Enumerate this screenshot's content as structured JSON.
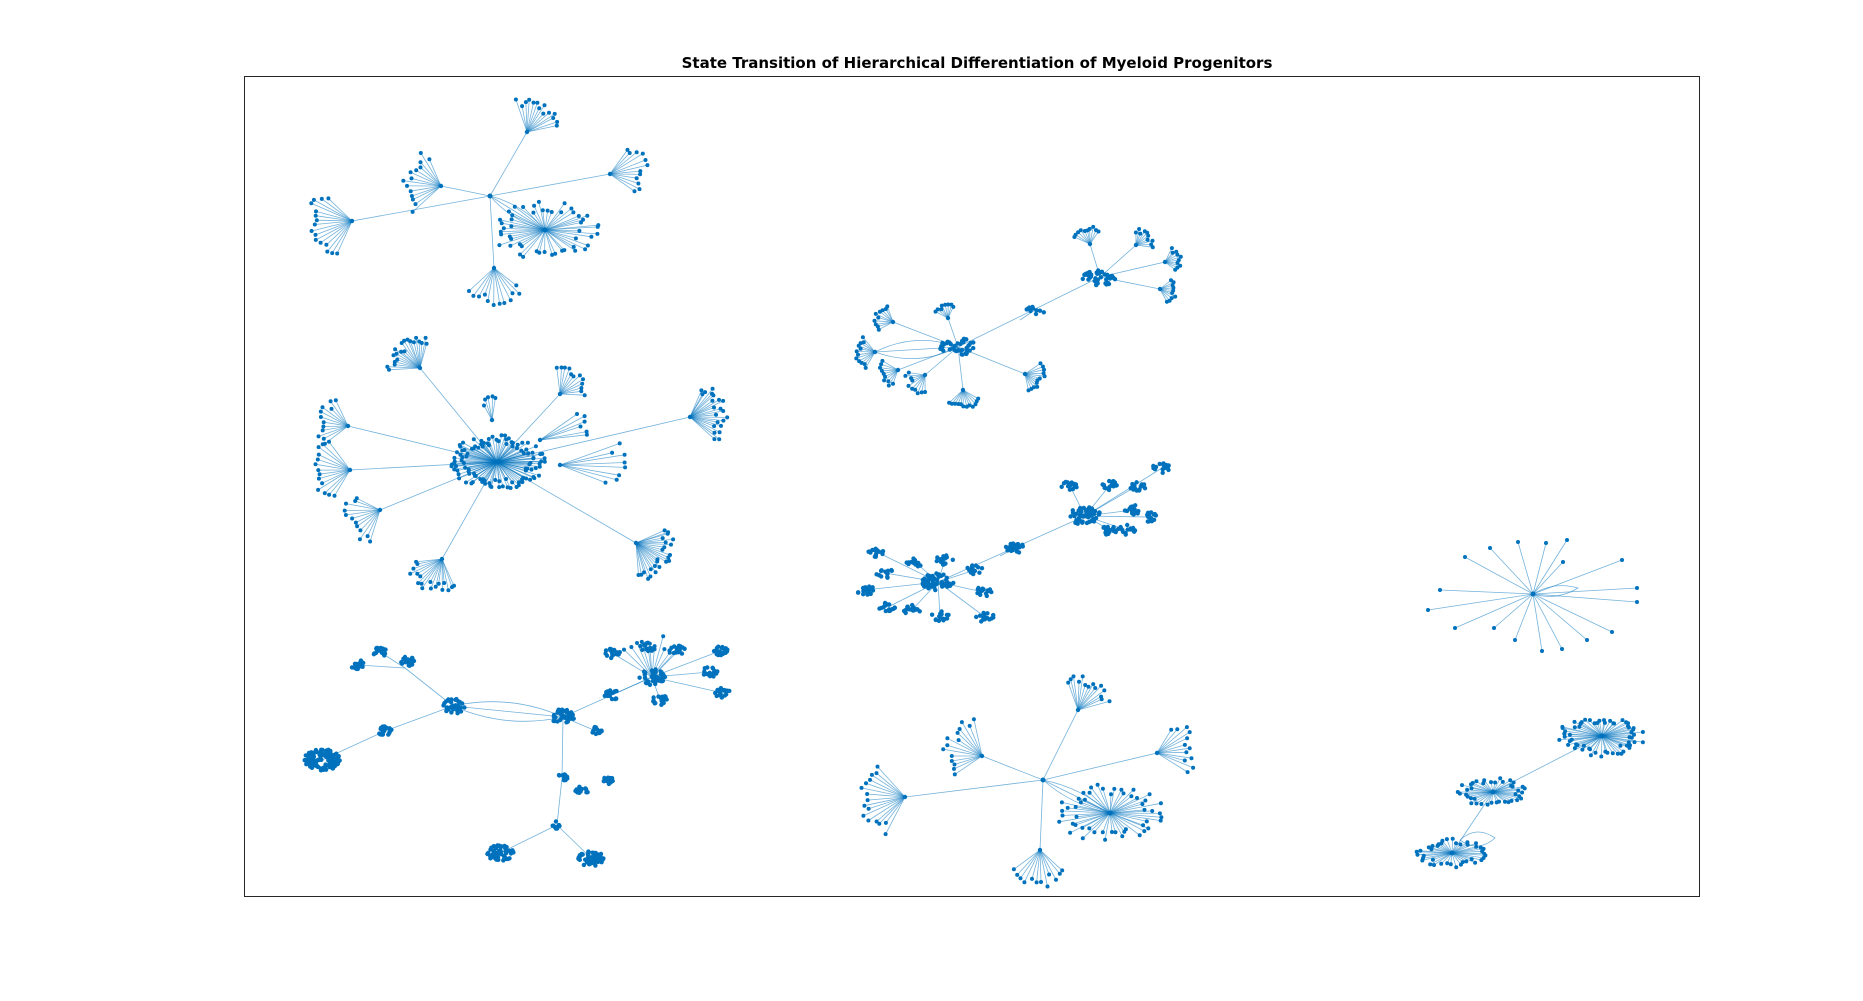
{
  "figure": {
    "title": "State Transition of Hierarchical Differentiation of Myeloid Progenitors",
    "colors": {
      "node": "#0072BD",
      "edge": "#0072BD",
      "axes": "#262626",
      "background": "#ffffff"
    }
  },
  "graph": {
    "type": "network",
    "components": 8,
    "layout": "force"
  }
}
